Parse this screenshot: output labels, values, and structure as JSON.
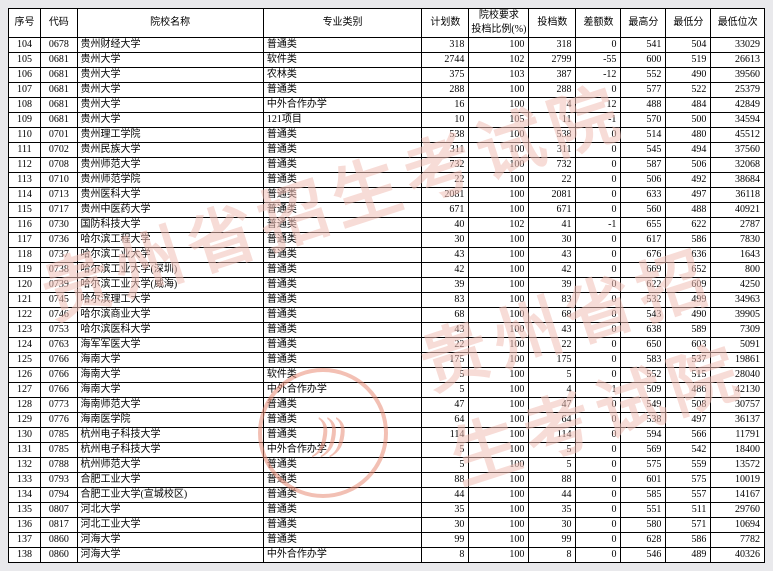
{
  "watermark_text": "贵州省招生考试院",
  "stamp_text": ")))",
  "columns": [
    {
      "key": "xh",
      "label": "序号"
    },
    {
      "key": "dm",
      "label": "代码"
    },
    {
      "key": "name",
      "label": "院校名称"
    },
    {
      "key": "cat",
      "label": "专业类别"
    },
    {
      "key": "plan",
      "label": "计划数"
    },
    {
      "key": "ratio",
      "label": "院校要求\n投档比例(%)"
    },
    {
      "key": "cast",
      "label": "投档数"
    },
    {
      "key": "diff",
      "label": "差额数"
    },
    {
      "key": "high",
      "label": "最高分"
    },
    {
      "key": "low",
      "label": "最低分"
    },
    {
      "key": "rank",
      "label": "最低位次"
    }
  ],
  "rows": [
    {
      "xh": 104,
      "dm": "0678",
      "name": "贵州财经大学",
      "cat": "普通类",
      "plan": 318,
      "ratio": 100,
      "cast": 318,
      "diff": 0,
      "high": 541,
      "low": 504,
      "rank": 33029
    },
    {
      "xh": 105,
      "dm": "0681",
      "name": "贵州大学",
      "cat": "软件类",
      "plan": 2744,
      "ratio": 102,
      "cast": 2799,
      "diff": -55,
      "high": 600,
      "low": 519,
      "rank": 26613
    },
    {
      "xh": 106,
      "dm": "0681",
      "name": "贵州大学",
      "cat": "农林类",
      "plan": 375,
      "ratio": 103,
      "cast": 387,
      "diff": -12,
      "high": 552,
      "low": 490,
      "rank": 39560
    },
    {
      "xh": 107,
      "dm": "0681",
      "name": "贵州大学",
      "cat": "普通类",
      "plan": 288,
      "ratio": 100,
      "cast": 288,
      "diff": 0,
      "high": 577,
      "low": 522,
      "rank": 25379
    },
    {
      "xh": 108,
      "dm": "0681",
      "name": "贵州大学",
      "cat": "中外合作办学",
      "plan": 16,
      "ratio": 100,
      "cast": 4,
      "diff": 12,
      "high": 488,
      "low": 484,
      "rank": 42849
    },
    {
      "xh": 109,
      "dm": "0681",
      "name": "贵州大学",
      "cat": "121项目",
      "plan": 10,
      "ratio": 105,
      "cast": 11,
      "diff": -1,
      "high": 570,
      "low": 500,
      "rank": 34594
    },
    {
      "xh": 110,
      "dm": "0701",
      "name": "贵州理工学院",
      "cat": "普通类",
      "plan": 538,
      "ratio": 100,
      "cast": 538,
      "diff": 0,
      "high": 514,
      "low": 480,
      "rank": 45512
    },
    {
      "xh": 111,
      "dm": "0702",
      "name": "贵州民族大学",
      "cat": "普通类",
      "plan": 311,
      "ratio": 100,
      "cast": 311,
      "diff": 0,
      "high": 545,
      "low": 494,
      "rank": 37560
    },
    {
      "xh": 112,
      "dm": "0708",
      "name": "贵州师范大学",
      "cat": "普通类",
      "plan": 732,
      "ratio": 100,
      "cast": 732,
      "diff": 0,
      "high": 587,
      "low": 506,
      "rank": 32068
    },
    {
      "xh": 113,
      "dm": "0710",
      "name": "贵州师范学院",
      "cat": "普通类",
      "plan": 22,
      "ratio": 100,
      "cast": 22,
      "diff": 0,
      "high": 506,
      "low": 492,
      "rank": 38684
    },
    {
      "xh": 114,
      "dm": "0713",
      "name": "贵州医科大学",
      "cat": "普通类",
      "plan": 2081,
      "ratio": 100,
      "cast": 2081,
      "diff": 0,
      "high": 633,
      "low": 497,
      "rank": 36118
    },
    {
      "xh": 115,
      "dm": "0717",
      "name": "贵州中医药大学",
      "cat": "普通类",
      "plan": 671,
      "ratio": 100,
      "cast": 671,
      "diff": 0,
      "high": 560,
      "low": 488,
      "rank": 40921
    },
    {
      "xh": 116,
      "dm": "0730",
      "name": "国防科技大学",
      "cat": "普通类",
      "plan": 40,
      "ratio": 102,
      "cast": 41,
      "diff": -1,
      "high": 655,
      "low": 622,
      "rank": 2787
    },
    {
      "xh": 117,
      "dm": "0736",
      "name": "哈尔滨工程大学",
      "cat": "普通类",
      "plan": 30,
      "ratio": 100,
      "cast": 30,
      "diff": 0,
      "high": 617,
      "low": 586,
      "rank": 7830
    },
    {
      "xh": 118,
      "dm": "0737",
      "name": "哈尔滨工业大学",
      "cat": "普通类",
      "plan": 43,
      "ratio": 100,
      "cast": 43,
      "diff": 0,
      "high": 676,
      "low": 636,
      "rank": 1643
    },
    {
      "xh": 119,
      "dm": "0738",
      "name": "哈尔滨工业大学(深圳)",
      "cat": "普通类",
      "plan": 42,
      "ratio": 100,
      "cast": 42,
      "diff": 0,
      "high": 669,
      "low": 652,
      "rank": 800
    },
    {
      "xh": 120,
      "dm": "0739",
      "name": "哈尔滨工业大学(威海)",
      "cat": "普通类",
      "plan": 39,
      "ratio": 100,
      "cast": 39,
      "diff": 0,
      "high": 622,
      "low": 609,
      "rank": 4250
    },
    {
      "xh": 121,
      "dm": "0745",
      "name": "哈尔滨理工大学",
      "cat": "普通类",
      "plan": 83,
      "ratio": 100,
      "cast": 83,
      "diff": 0,
      "high": 532,
      "low": 499,
      "rank": 34963
    },
    {
      "xh": 122,
      "dm": "0746",
      "name": "哈尔滨商业大学",
      "cat": "普通类",
      "plan": 68,
      "ratio": 100,
      "cast": 68,
      "diff": 0,
      "high": 543,
      "low": 490,
      "rank": 39905
    },
    {
      "xh": 123,
      "dm": "0753",
      "name": "哈尔滨医科大学",
      "cat": "普通类",
      "plan": 43,
      "ratio": 100,
      "cast": 43,
      "diff": 0,
      "high": 638,
      "low": 589,
      "rank": 7309
    },
    {
      "xh": 124,
      "dm": "0763",
      "name": "海军军医大学",
      "cat": "普通类",
      "plan": 22,
      "ratio": 100,
      "cast": 22,
      "diff": 0,
      "high": 650,
      "low": 603,
      "rank": 5091
    },
    {
      "xh": 125,
      "dm": "0766",
      "name": "海南大学",
      "cat": "普通类",
      "plan": 175,
      "ratio": 100,
      "cast": 175,
      "diff": 0,
      "high": 583,
      "low": 537,
      "rank": 19861
    },
    {
      "xh": 126,
      "dm": "0766",
      "name": "海南大学",
      "cat": "软件类",
      "plan": 5,
      "ratio": 100,
      "cast": 5,
      "diff": 0,
      "high": 552,
      "low": 515,
      "rank": 28040
    },
    {
      "xh": 127,
      "dm": "0766",
      "name": "海南大学",
      "cat": "中外合作办学",
      "plan": 5,
      "ratio": 100,
      "cast": 4,
      "diff": 1,
      "high": 509,
      "low": 486,
      "rank": 42130
    },
    {
      "xh": 128,
      "dm": "0773",
      "name": "海南师范大学",
      "cat": "普通类",
      "plan": 47,
      "ratio": 100,
      "cast": 47,
      "diff": 0,
      "high": 549,
      "low": 508,
      "rank": 30757
    },
    {
      "xh": 129,
      "dm": "0776",
      "name": "海南医学院",
      "cat": "普通类",
      "plan": 64,
      "ratio": 100,
      "cast": 64,
      "diff": 0,
      "high": 538,
      "low": 497,
      "rank": 36137
    },
    {
      "xh": 130,
      "dm": "0785",
      "name": "杭州电子科技大学",
      "cat": "普通类",
      "plan": 114,
      "ratio": 100,
      "cast": 114,
      "diff": 0,
      "high": 594,
      "low": 566,
      "rank": 11791
    },
    {
      "xh": 131,
      "dm": "0785",
      "name": "杭州电子科技大学",
      "cat": "中外合作办学",
      "plan": 5,
      "ratio": 100,
      "cast": 5,
      "diff": 0,
      "high": 569,
      "low": 542,
      "rank": 18400
    },
    {
      "xh": 132,
      "dm": "0788",
      "name": "杭州师范大学",
      "cat": "普通类",
      "plan": 5,
      "ratio": 100,
      "cast": 5,
      "diff": 0,
      "high": 575,
      "low": 559,
      "rank": 13572
    },
    {
      "xh": 133,
      "dm": "0793",
      "name": "合肥工业大学",
      "cat": "普通类",
      "plan": 88,
      "ratio": 100,
      "cast": 88,
      "diff": 0,
      "high": 601,
      "low": 575,
      "rank": 10019
    },
    {
      "xh": 134,
      "dm": "0794",
      "name": "合肥工业大学(宣城校区)",
      "cat": "普通类",
      "plan": 44,
      "ratio": 100,
      "cast": 44,
      "diff": 0,
      "high": 585,
      "low": 557,
      "rank": 14167
    },
    {
      "xh": 135,
      "dm": "0807",
      "name": "河北大学",
      "cat": "普通类",
      "plan": 35,
      "ratio": 100,
      "cast": 35,
      "diff": 0,
      "high": 551,
      "low": 511,
      "rank": 29760
    },
    {
      "xh": 136,
      "dm": "0817",
      "name": "河北工业大学",
      "cat": "普通类",
      "plan": 30,
      "ratio": 100,
      "cast": 30,
      "diff": 0,
      "high": 580,
      "low": 571,
      "rank": 10694
    },
    {
      "xh": 137,
      "dm": "0860",
      "name": "河海大学",
      "cat": "普通类",
      "plan": 99,
      "ratio": 100,
      "cast": 99,
      "diff": 0,
      "high": 628,
      "low": 586,
      "rank": 7782
    },
    {
      "xh": 138,
      "dm": "0860",
      "name": "河海大学",
      "cat": "中外合作办学",
      "plan": 8,
      "ratio": 100,
      "cast": 8,
      "diff": 0,
      "high": 546,
      "low": 489,
      "rank": 40326
    }
  ],
  "style": {
    "col_align": {
      "xh": "num",
      "dm": "num",
      "name": "lt",
      "cat": "lt",
      "plan": "rt",
      "ratio": "rt",
      "cast": "rt",
      "diff": "rt",
      "high": "rt",
      "low": "rt",
      "rank": "rt"
    }
  }
}
